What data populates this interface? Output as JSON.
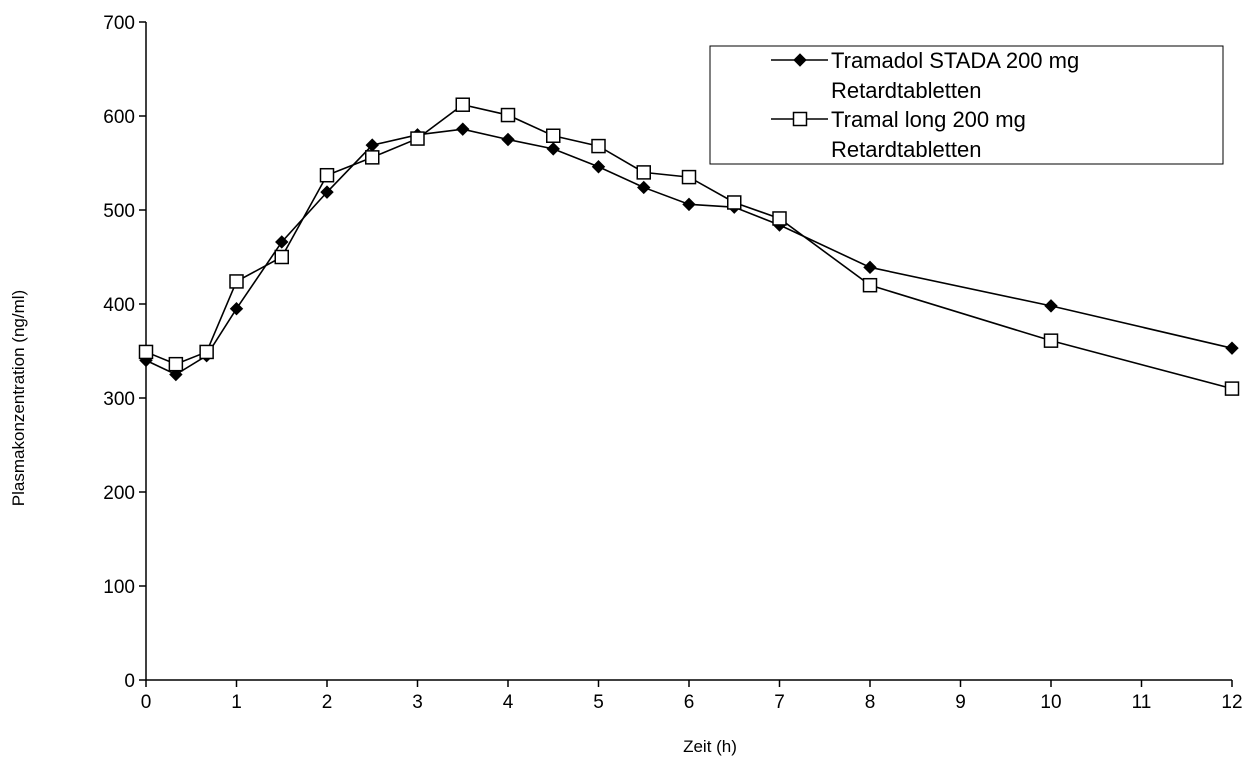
{
  "chart_data": {
    "type": "line",
    "title": "",
    "xlabel": "Zeit (h)",
    "ylabel": "Plasmakonzentration (ng/ml)",
    "xlim": [
      0,
      12
    ],
    "ylim": [
      0,
      700
    ],
    "x_ticks": [
      0,
      1,
      2,
      3,
      4,
      5,
      6,
      7,
      8,
      9,
      10,
      11,
      12
    ],
    "y_ticks": [
      0,
      100,
      200,
      300,
      400,
      500,
      600,
      700
    ],
    "grid": false,
    "legend_position": "top-right",
    "series": [
      {
        "name_lines": [
          "Tramadol STADA 200 mg",
          "Retardtabletten"
        ],
        "marker": "filled-diamond",
        "color": "#000000",
        "x": [
          0,
          0.33,
          0.67,
          1,
          1.5,
          2,
          2.5,
          3,
          3.5,
          4,
          4.5,
          5,
          5.5,
          6,
          6.5,
          7,
          8,
          10,
          12
        ],
        "y": [
          340,
          325,
          345,
          395,
          466,
          519,
          569,
          580,
          586,
          575,
          565,
          546,
          524,
          506,
          503,
          484,
          439,
          398,
          353
        ]
      },
      {
        "name_lines": [
          "Tramal long 200 mg",
          "Retardtabletten"
        ],
        "marker": "open-square",
        "color": "#000000",
        "x": [
          0,
          0.33,
          0.67,
          1,
          1.5,
          2,
          2.5,
          3,
          3.5,
          4,
          4.5,
          5,
          5.5,
          6,
          6.5,
          7,
          8,
          10,
          12
        ],
        "y": [
          349,
          336,
          349,
          424,
          450,
          537,
          556,
          576,
          612,
          601,
          579,
          568,
          540,
          535,
          508,
          491,
          420,
          361,
          310
        ]
      }
    ]
  }
}
